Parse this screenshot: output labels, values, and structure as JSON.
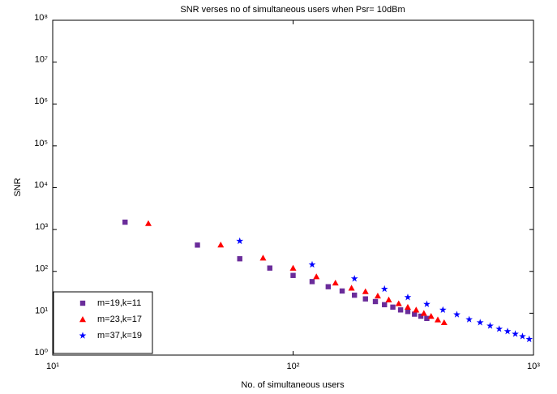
{
  "chart_data": {
    "type": "scatter",
    "title": "SNR verses no of simultaneous users when Psr= 10dBm",
    "x_label": "No. of simultaneous users",
    "y_label": "SNR",
    "xscale": "log",
    "yscale": "log",
    "xlim": [
      10,
      1000
    ],
    "ylim": [
      1,
      100000000
    ],
    "xticks": [
      {
        "value": 10,
        "label": "10¹"
      },
      {
        "value": 100,
        "label": "10²"
      },
      {
        "value": 1000,
        "label": "10³"
      }
    ],
    "yticks": [
      {
        "value": 1,
        "label": "10⁰"
      },
      {
        "value": 10,
        "label": "10¹"
      },
      {
        "value": 100,
        "label": "10²"
      },
      {
        "value": 1000,
        "label": "10³"
      },
      {
        "value": 10000,
        "label": "10⁴"
      },
      {
        "value": 100000,
        "label": "10⁵"
      },
      {
        "value": 1000000,
        "label": "10⁶"
      },
      {
        "value": 10000000,
        "label": "10⁷"
      },
      {
        "value": 100000000,
        "label": "10⁸"
      }
    ],
    "legend": "lower left",
    "series": [
      {
        "name": "m=19,k=11",
        "color": "#6a2c9a",
        "marker": "square",
        "x": [
          20,
          40,
          60,
          80,
          100,
          120,
          140,
          160,
          180,
          200,
          220,
          240,
          260,
          280,
          300,
          320,
          340,
          360
        ],
        "values": [
          1500,
          425,
          200,
          120,
          80,
          57,
          43,
          34,
          27,
          22,
          19,
          16,
          14,
          12,
          11,
          9.5,
          8.5,
          7.5
        ]
      },
      {
        "name": "m=23,k=17",
        "color": "#ff0000",
        "marker": "triangle",
        "x": [
          25,
          50,
          75,
          100,
          125,
          150,
          175,
          200,
          225,
          250,
          275,
          300,
          325,
          350,
          375,
          400,
          425
        ],
        "values": [
          1400,
          430,
          210,
          120,
          75,
          53,
          40,
          33,
          26,
          21,
          17,
          14,
          12,
          10,
          8.5,
          7,
          6
        ]
      },
      {
        "name": "m=37,k=19",
        "color": "#0000ff",
        "marker": "star",
        "x": [
          60,
          120,
          180,
          240,
          300,
          360,
          420,
          480,
          540,
          600,
          660,
          720,
          780,
          840,
          900,
          960
        ],
        "values": [
          530,
          145,
          67,
          38,
          24,
          16.5,
          12,
          9.3,
          7.1,
          6,
          5,
          4.2,
          3.7,
          3.2,
          2.8,
          2.4
        ]
      }
    ]
  }
}
